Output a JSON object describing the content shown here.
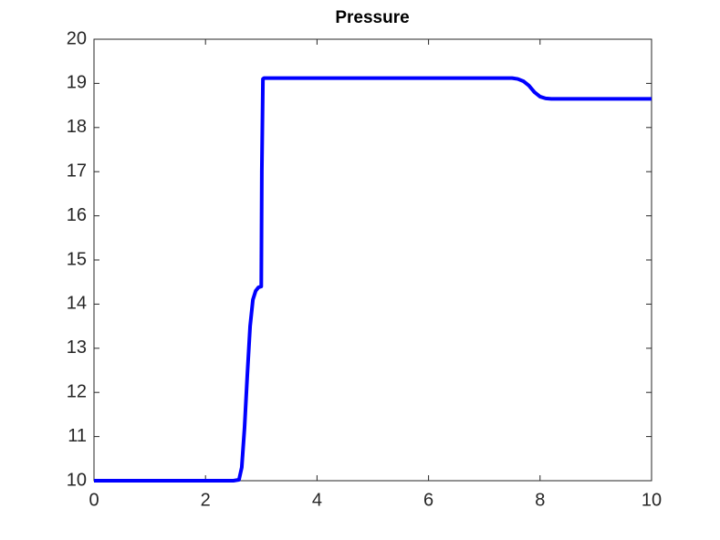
{
  "chart_data": {
    "type": "line",
    "title": "Pressure",
    "x": [
      0,
      2.5,
      2.6,
      2.65,
      2.7,
      2.75,
      2.8,
      2.85,
      2.9,
      2.95,
      3.0,
      3.01,
      3.03,
      3.05,
      7.5,
      7.6,
      7.7,
      7.8,
      7.9,
      8.0,
      8.1,
      8.2,
      10
    ],
    "series": [
      {
        "name": "Pressure",
        "color": "#0000ff",
        "values": [
          10,
          10,
          10.02,
          10.3,
          11.2,
          12.4,
          13.5,
          14.1,
          14.3,
          14.38,
          14.4,
          17,
          19.1,
          19.12,
          19.12,
          19.1,
          19.05,
          18.95,
          18.8,
          18.7,
          18.66,
          18.65,
          18.65
        ]
      }
    ],
    "xlim": [
      0,
      10
    ],
    "ylim": [
      10,
      20
    ],
    "xticks": [
      0,
      2,
      4,
      6,
      8,
      10
    ],
    "yticks": [
      10,
      11,
      12,
      13,
      14,
      15,
      16,
      17,
      18,
      19,
      20
    ],
    "grid": false
  }
}
